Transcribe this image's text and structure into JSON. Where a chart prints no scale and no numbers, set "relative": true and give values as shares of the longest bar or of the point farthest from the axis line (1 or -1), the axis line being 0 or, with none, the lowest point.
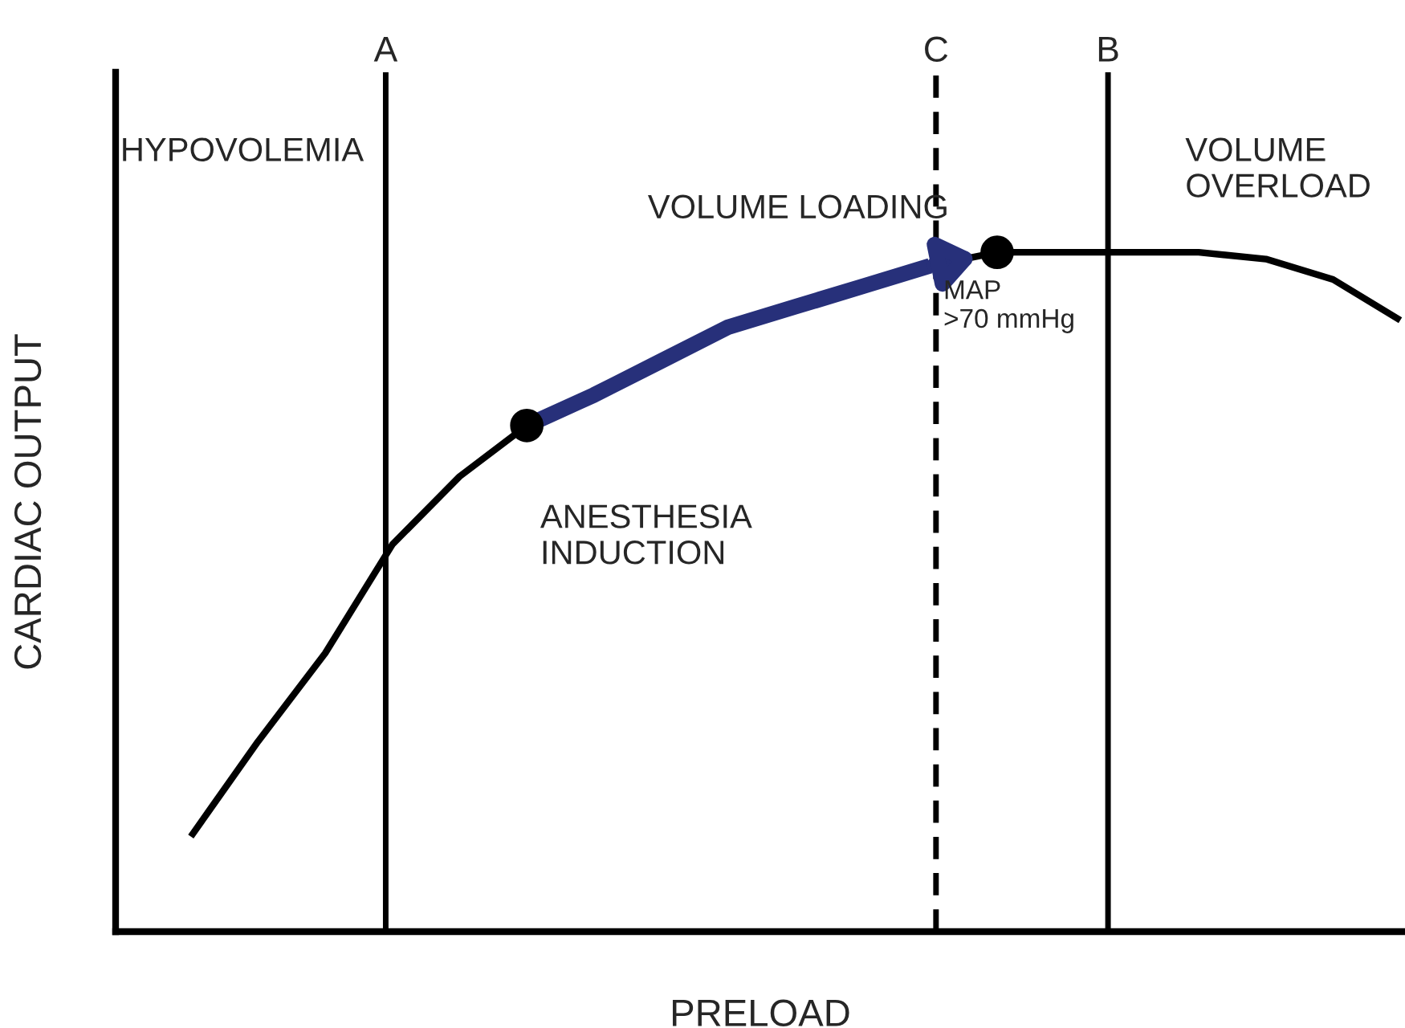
{
  "chart_data": {
    "type": "line",
    "relative": true,
    "xlabel": "PRELOAD",
    "ylabel": "CARDIAC OUTPUT",
    "legend": false,
    "categories": [
      null,
      null,
      null,
      null,
      null,
      null,
      null,
      null,
      null,
      null,
      null,
      null,
      null,
      null,
      null,
      null,
      null,
      null,
      null
    ],
    "series": [
      {
        "color": "#000000",
        "values": [
          0.14,
          0.28,
          0.41,
          0.57,
          0.67,
          0.745,
          0.79,
          0.84,
          0.89,
          0.92,
          0.95,
          0.98,
          1.0,
          1.0,
          1.0,
          1.0,
          0.99,
          0.96,
          0.9
        ]
      }
    ],
    "annotations": [
      "HYPOVOLEMIA",
      "VOLUME\nOVERLOAD",
      "VOLUME LOADING",
      "MAP\n>70 mmHg",
      "ANESTHESIA\nINDUCTION",
      "A",
      "C",
      "B"
    ]
  }
}
